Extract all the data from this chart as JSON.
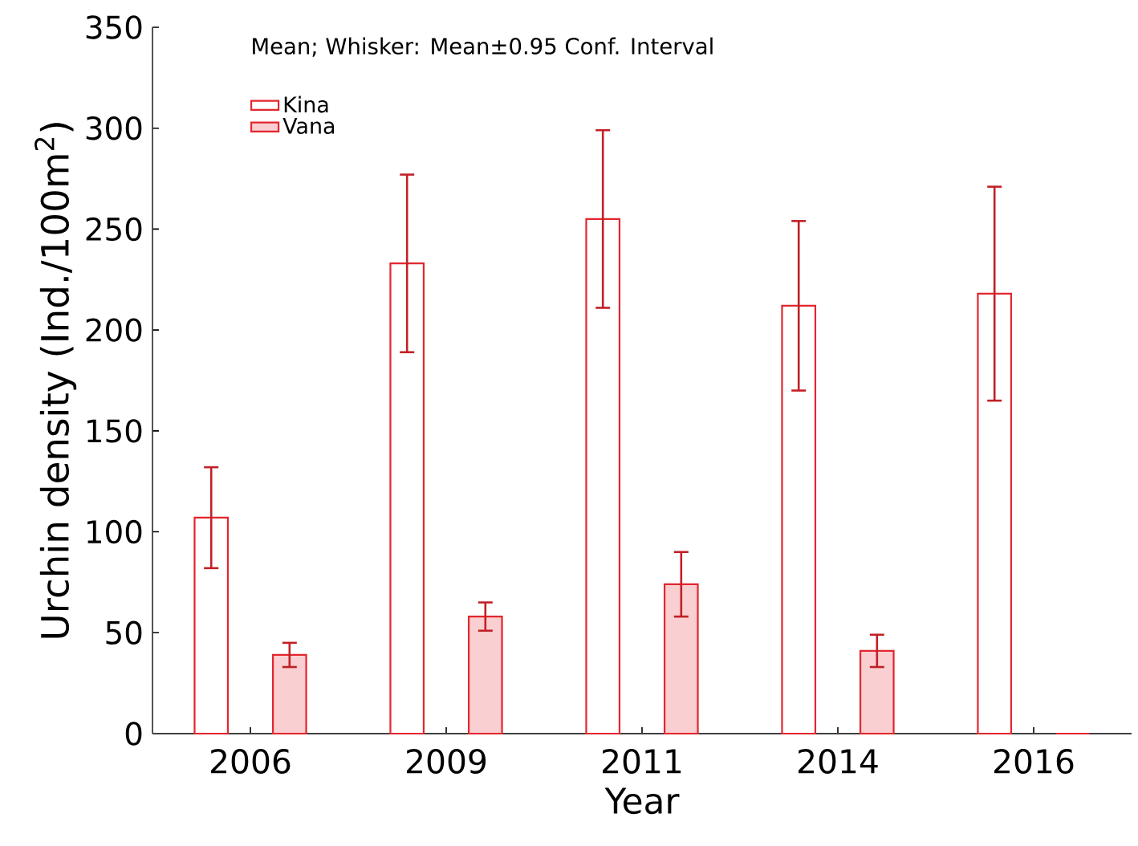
{
  "chart_data": {
    "type": "bar",
    "xlabel": "Year",
    "ylabel": "Urchin density (Ind./100m$^{2}$)",
    "annotations": [
      "Mean; Whisker: Mean±0.95 Conf. Interval"
    ],
    "categories": [
      "2006",
      "2009",
      "2011",
      "2014",
      "2016"
    ],
    "series": [
      {
        "name": "Kina",
        "color": "#e3262e",
        "values": [
          107,
          233,
          255,
          212,
          218
        ],
        "errors": [
          25,
          44,
          44,
          42,
          53
        ]
      },
      {
        "name": "Vana",
        "color": "#e3262e",
        "values": [
          39,
          58,
          74,
          41,
          0
        ],
        "errors": [
          6,
          7,
          16,
          8,
          null
        ]
      }
    ],
    "ylim": [
      0,
      350
    ],
    "yticks": [
      0,
      50,
      100,
      150,
      200,
      250,
      300,
      350
    ],
    "legend": "top left"
  }
}
